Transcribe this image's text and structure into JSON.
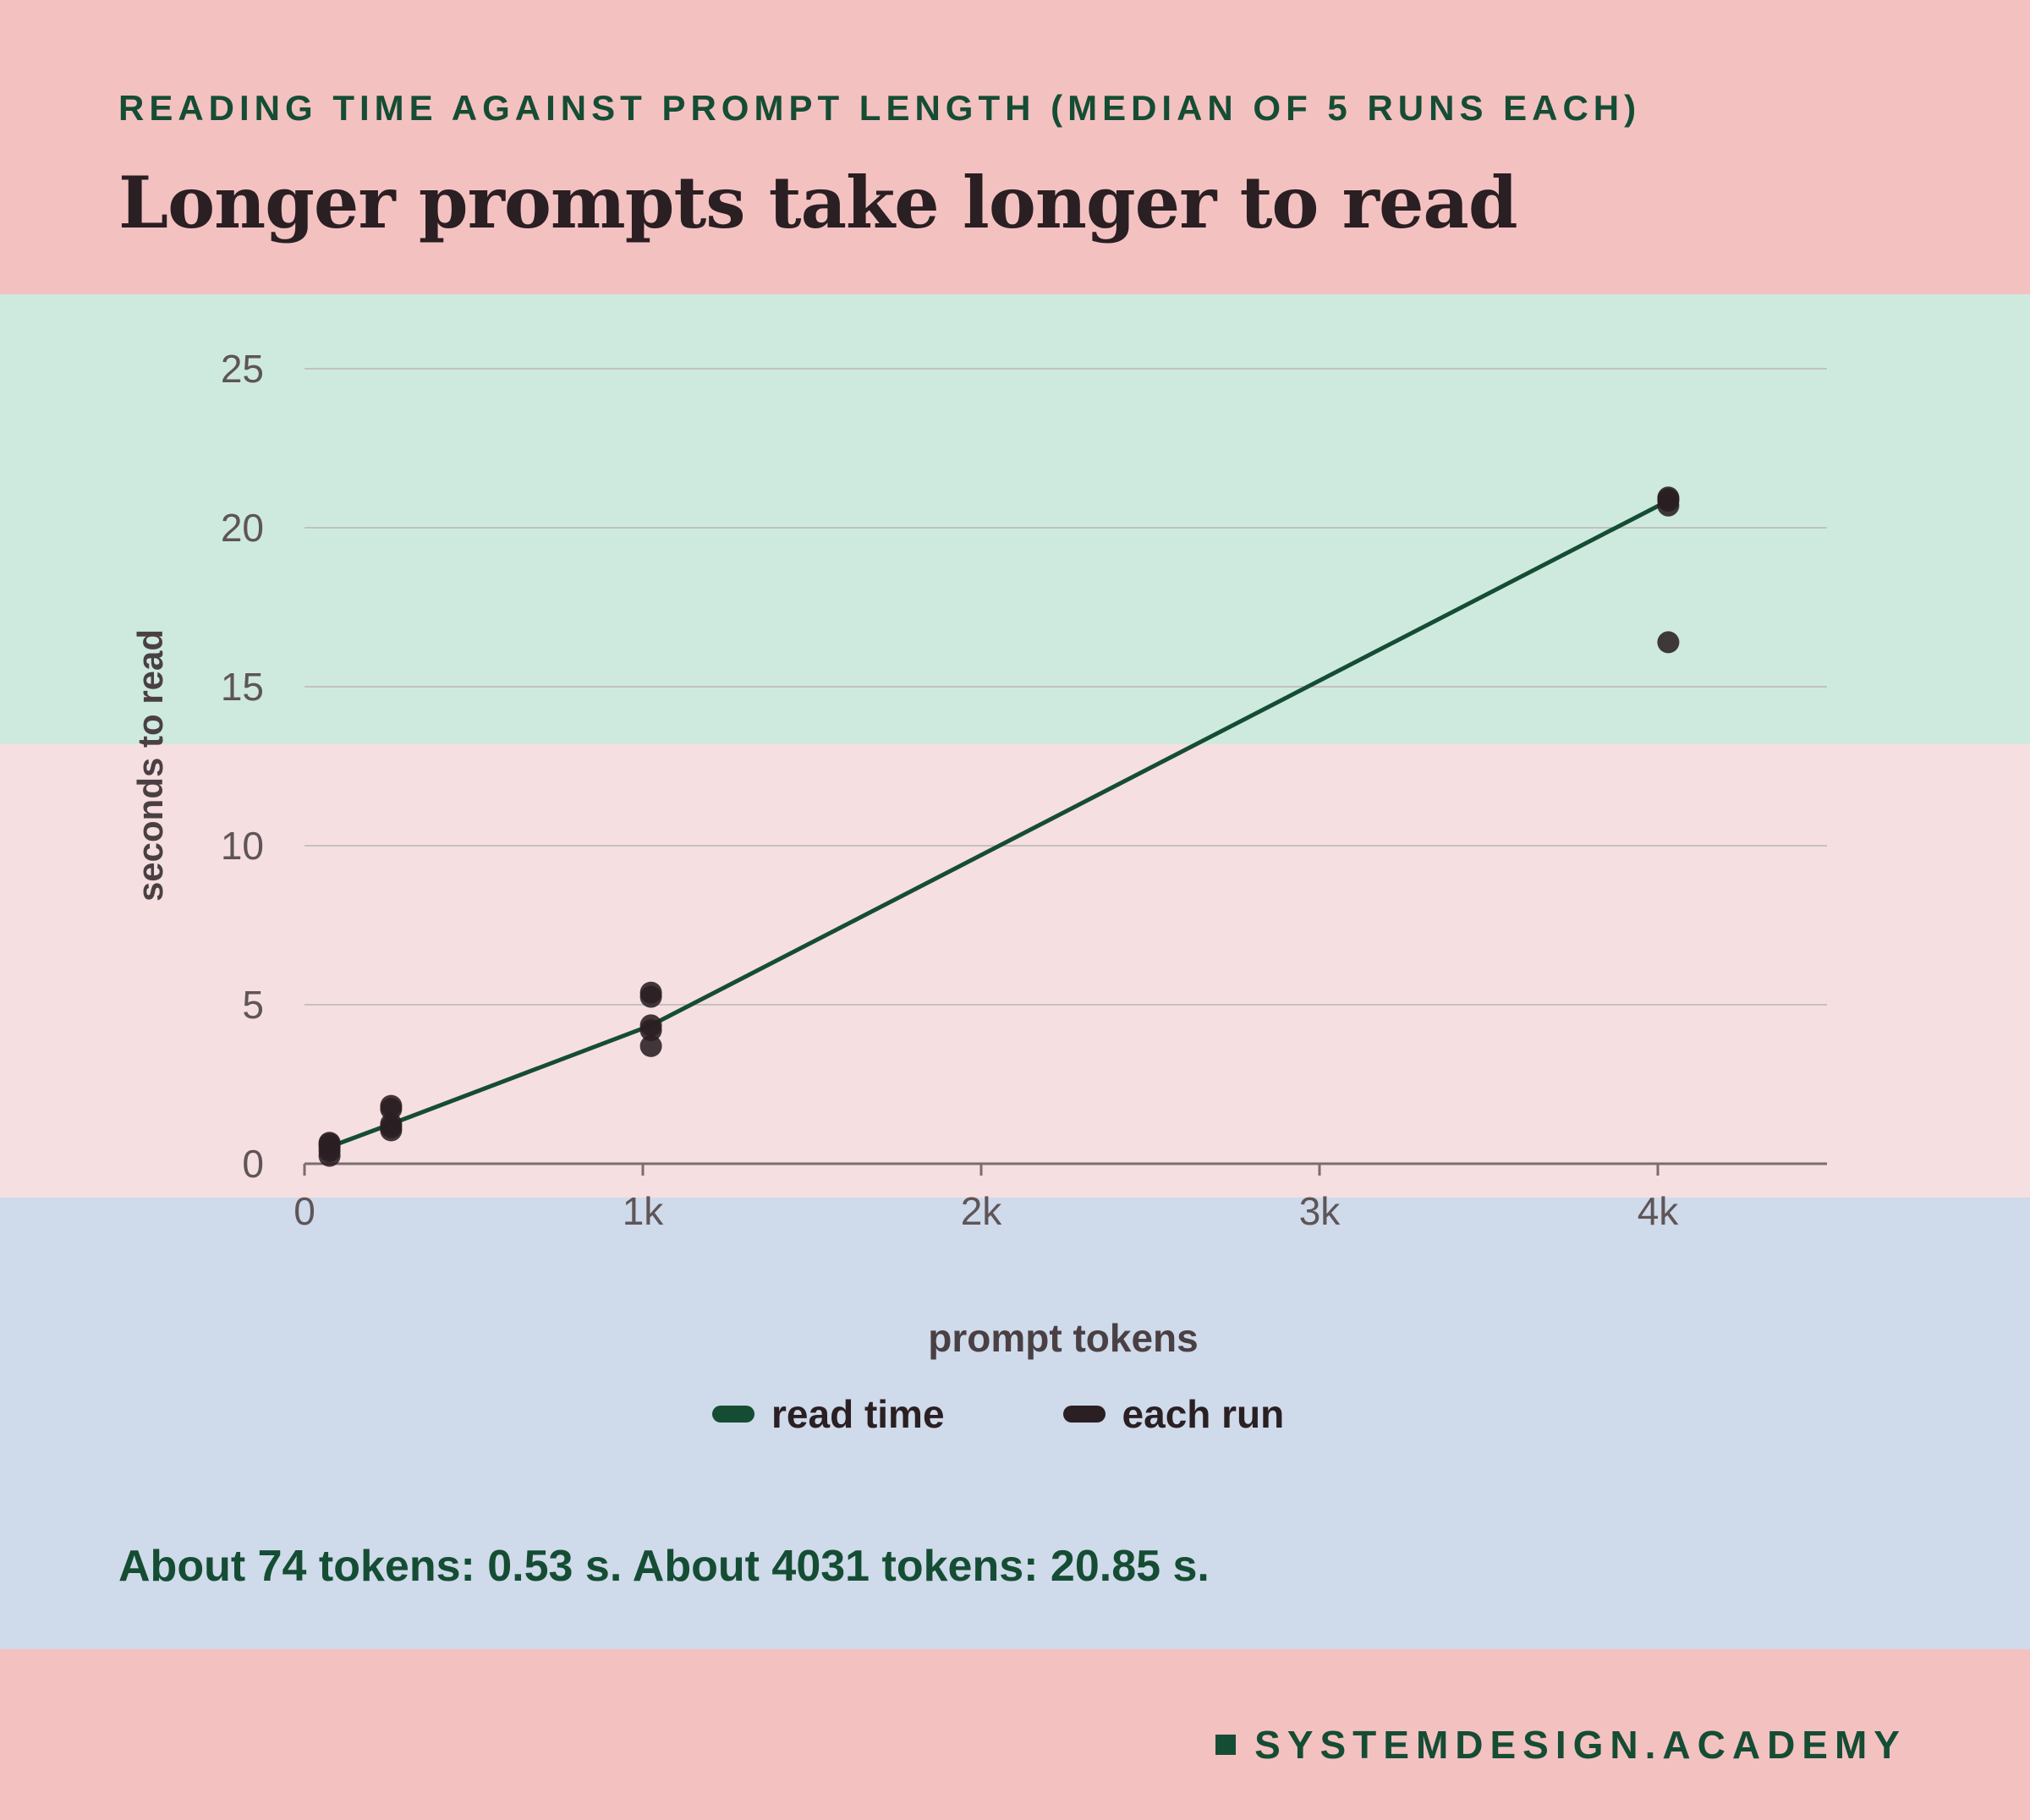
{
  "header": {
    "kicker": "READING TIME AGAINST PROMPT LENGTH (MEDIAN OF 5 RUNS EACH)",
    "title": "Longer prompts take longer to read"
  },
  "colors": {
    "band_top": "#f4c1c1",
    "band_green": "#ceeadf",
    "band_pink": "#f6dfe0",
    "band_blue": "#cfdaea",
    "line": "#154d34",
    "points": "#2a1f22",
    "accent_text": "#154d34",
    "axis": "#7a6c70",
    "grid": "#c4c0c0",
    "tick_text": "#5e5558"
  },
  "chart_data": {
    "type": "scatter",
    "xlabel": "prompt tokens",
    "ylabel": "seconds to read",
    "xlim": [
      0,
      4500
    ],
    "ylim": [
      0,
      25
    ],
    "x_ticks": [
      {
        "value": 0,
        "label": "0"
      },
      {
        "value": 1000,
        "label": "1k"
      },
      {
        "value": 2000,
        "label": "2k"
      },
      {
        "value": 3000,
        "label": "3k"
      },
      {
        "value": 4000,
        "label": "4k"
      }
    ],
    "y_ticks": [
      {
        "value": 0,
        "label": "0"
      },
      {
        "value": 5,
        "label": "5"
      },
      {
        "value": 10,
        "label": "10"
      },
      {
        "value": 15,
        "label": "15"
      },
      {
        "value": 20,
        "label": "20"
      },
      {
        "value": 25,
        "label": "25"
      }
    ],
    "grid": "horizontal",
    "legend_position": "bottom",
    "series": [
      {
        "name": "read time",
        "kind": "line",
        "points": [
          [
            74,
            0.53
          ],
          [
            256,
            1.25
          ],
          [
            1024,
            4.35
          ],
          [
            4031,
            20.85
          ]
        ]
      },
      {
        "name": "each run",
        "kind": "scatter",
        "points": [
          [
            74,
            0.25
          ],
          [
            74,
            0.4
          ],
          [
            74,
            0.53
          ],
          [
            74,
            0.62
          ],
          [
            74,
            0.66
          ],
          [
            256,
            1.05
          ],
          [
            256,
            1.15
          ],
          [
            256,
            1.25
          ],
          [
            256,
            1.72
          ],
          [
            256,
            1.82
          ],
          [
            1024,
            3.7
          ],
          [
            1024,
            4.2
          ],
          [
            1024,
            4.35
          ],
          [
            1024,
            5.25
          ],
          [
            1024,
            5.38
          ],
          [
            4031,
            16.4
          ],
          [
            4031,
            20.7
          ],
          [
            4031,
            20.85
          ],
          [
            4031,
            20.9
          ],
          [
            4031,
            20.95
          ]
        ]
      }
    ]
  },
  "summary": "About 74 tokens: 0.53 s. About 4031 tokens: 20.85 s.",
  "footer": {
    "brand": "SYSTEMDESIGN.ACADEMY"
  }
}
